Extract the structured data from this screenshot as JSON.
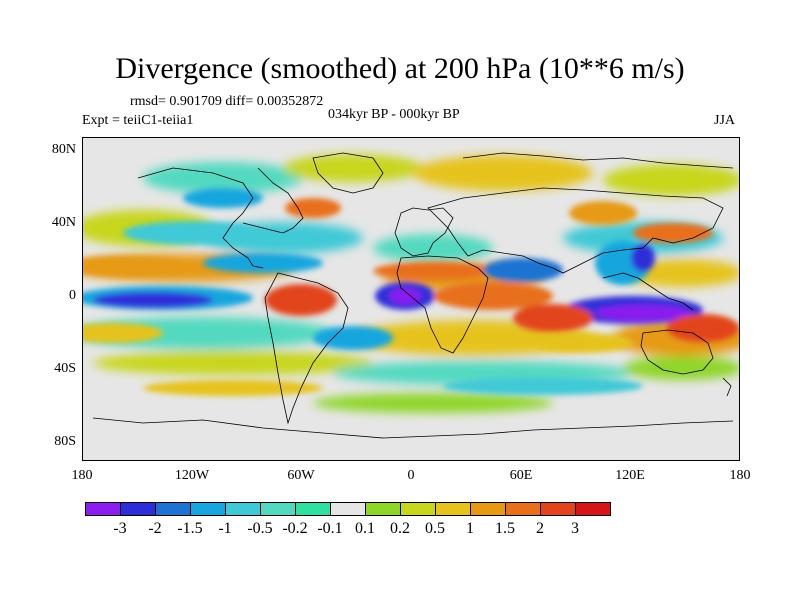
{
  "title": "Divergence (smoothed) at 200 hPa (10**6 m/s)",
  "stats": "rmsd= 0.901709 diff= 0.00352872",
  "experiment": "Expt = teiiC1-teiia1",
  "period": "034kyr BP - 000kyr BP",
  "season": "JJA",
  "lat_labels": [
    "80N",
    "40N",
    "0",
    "40S",
    "80S"
  ],
  "lon_labels": [
    "180",
    "120W",
    "60W",
    "0",
    "60E",
    "120E",
    "180"
  ],
  "colorbar": {
    "colors": [
      "#8a1ff0",
      "#2d2ed9",
      "#1e73d2",
      "#18a6de",
      "#3fc9d6",
      "#52d9c0",
      "#2fe0a0",
      "#e6e6e6",
      "#8fd62a",
      "#c8d61e",
      "#e6c31c",
      "#e69a14",
      "#e8701a",
      "#e2451c",
      "#d41616"
    ],
    "labels": [
      "-3",
      "-2",
      "-1.5",
      "-1",
      "-0.5",
      "-0.2",
      "-0.1",
      "0.1",
      "0.2",
      "0.5",
      "1",
      "1.5",
      "2",
      "3"
    ]
  }
}
